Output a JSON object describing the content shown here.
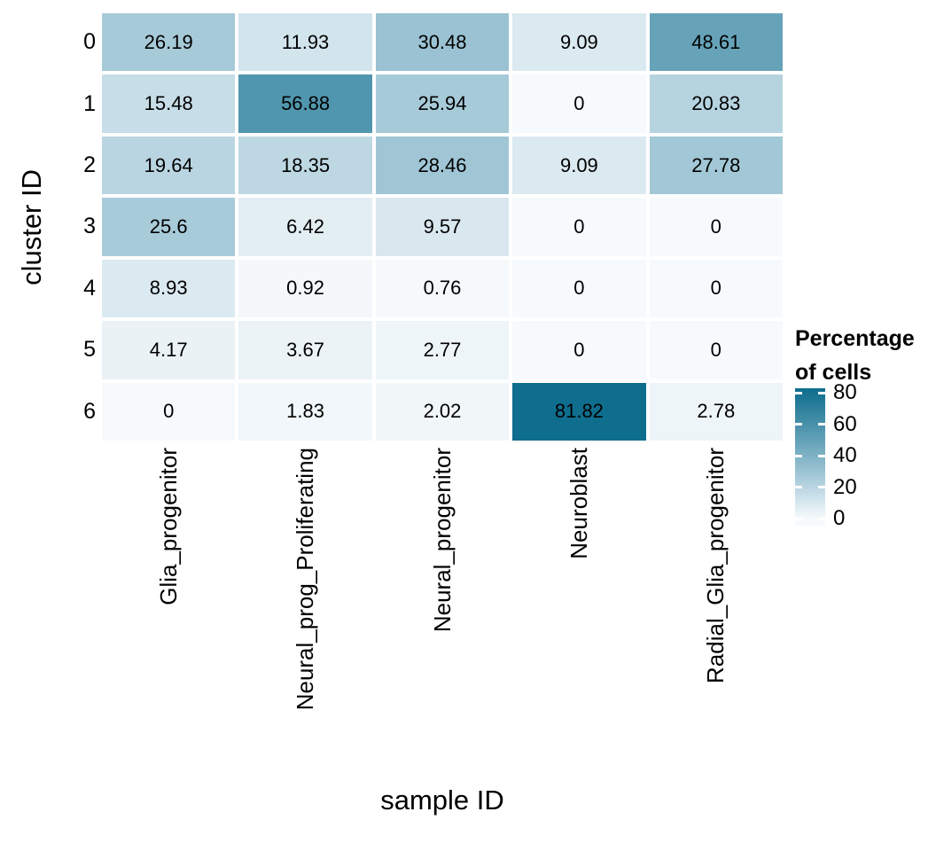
{
  "chart_data": {
    "type": "heatmap",
    "xlabel": "sample ID",
    "ylabel": "cluster ID",
    "columns": [
      "Glia_progenitor",
      "Neural_prog_Proliferating",
      "Neural_progenitor",
      "Neuroblast",
      "Radial_Glia_progenitor"
    ],
    "rows": [
      "0",
      "1",
      "2",
      "3",
      "4",
      "5",
      "6"
    ],
    "values": [
      [
        "26.19",
        "11.93",
        "30.48",
        "9.09",
        "48.61"
      ],
      [
        "15.48",
        "56.88",
        "25.94",
        "0",
        "20.83"
      ],
      [
        "19.64",
        "18.35",
        "28.46",
        "9.09",
        "27.78"
      ],
      [
        "25.6",
        "6.42",
        "9.57",
        "0",
        "0"
      ],
      [
        "8.93",
        "0.92",
        "0.76",
        "0",
        "0"
      ],
      [
        "4.17",
        "3.67",
        "2.77",
        "0",
        "0"
      ],
      [
        "0",
        "1.83",
        "2.02",
        "81.82",
        "2.78"
      ]
    ],
    "legend": {
      "title_lines": [
        "Percentage",
        "of cells"
      ],
      "ticks": [
        80,
        60,
        40,
        20,
        0
      ]
    },
    "colorscale": {
      "low": "#F7FAFC",
      "high": "#0F6E8E",
      "stops": [
        [
          0,
          "#F7FAFC"
        ],
        [
          20.83,
          "#B6D3E0"
        ],
        [
          48.61,
          "#66A3B9"
        ],
        [
          81.82,
          "#0F6E8E"
        ]
      ]
    },
    "text_color": "#000000"
  }
}
